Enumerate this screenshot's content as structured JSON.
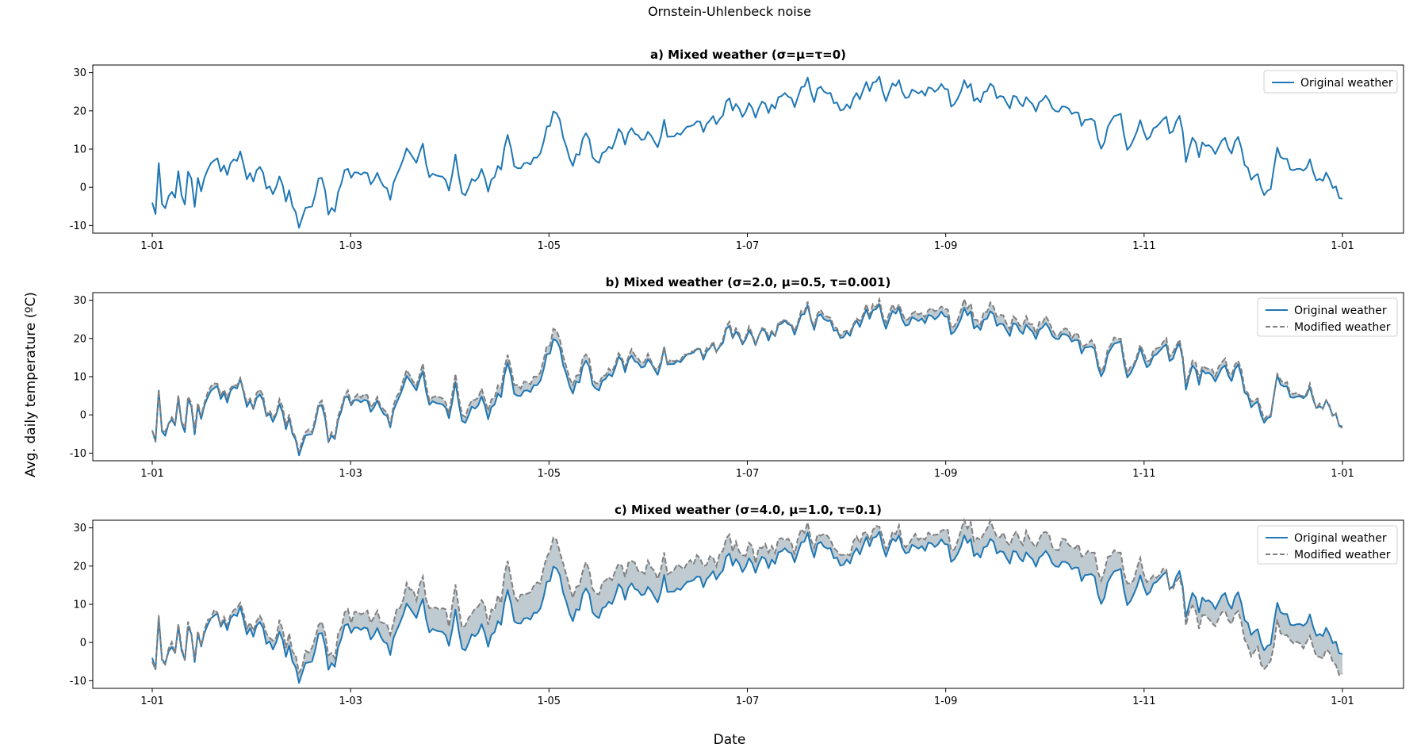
{
  "figure": {
    "suptitle": "Ornstein-Uhlenbeck noise",
    "xlabel": "Date",
    "ylabel": "Avg. daily temperature (ºC)"
  },
  "colors": {
    "original": "#1f77b4",
    "modified": "#808080",
    "fill": "#b8c4cc"
  },
  "chart_data": [
    {
      "type": "line",
      "title": "a) Mixed weather (σ=μ=τ=0)",
      "x_ticks": [
        "1-01",
        "1-03",
        "1-05",
        "1-07",
        "1-09",
        "1-11",
        "1-01"
      ],
      "y_ticks": [
        -10,
        0,
        10,
        20,
        30
      ],
      "ylim": [
        -12,
        32
      ],
      "legend": [
        "Original weather"
      ],
      "legend_position": "top-right",
      "series": [
        {
          "name": "Original weather",
          "style": "solid"
        }
      ]
    },
    {
      "type": "line",
      "title": "b) Mixed weather (σ=2.0, μ=0.5, τ=0.001)",
      "x_ticks": [
        "1-01",
        "1-03",
        "1-05",
        "1-07",
        "1-09",
        "1-11",
        "1-01"
      ],
      "y_ticks": [
        -10,
        0,
        10,
        20,
        30
      ],
      "ylim": [
        -12,
        32
      ],
      "legend": [
        "Original weather",
        "Modified weather"
      ],
      "legend_position": "top-right",
      "series": [
        {
          "name": "Original weather",
          "style": "solid"
        },
        {
          "name": "Modified weather",
          "style": "dashed"
        }
      ]
    },
    {
      "type": "line",
      "title": "c) Mixed weather (σ=4.0, μ=1.0, τ=0.1)",
      "x_ticks": [
        "1-01",
        "1-03",
        "1-05",
        "1-07",
        "1-09",
        "1-11",
        "1-01"
      ],
      "y_ticks": [
        -10,
        0,
        10,
        20,
        30
      ],
      "ylim": [
        -12,
        32
      ],
      "legend": [
        "Original weather",
        "Modified weather"
      ],
      "legend_position": "top-right",
      "series": [
        {
          "name": "Original weather",
          "style": "solid"
        },
        {
          "name": "Modified weather",
          "style": "dashed"
        }
      ]
    }
  ],
  "original_series": {
    "x_start": "1-01",
    "x_end": "1-01",
    "keypoints": [
      [
        "1-01",
        -4
      ],
      [
        "1-02",
        -8
      ],
      [
        "1-03",
        5
      ],
      [
        "1-04",
        -3
      ],
      [
        "1-05",
        -4
      ],
      [
        "1-06",
        -1
      ],
      [
        "1-08",
        -3
      ],
      [
        "1-09",
        3
      ],
      [
        "1-10",
        -3
      ],
      [
        "1-11",
        -4
      ],
      [
        "1-12",
        5
      ],
      [
        "1-13",
        3
      ],
      [
        "1-14",
        -6
      ],
      [
        "1-15",
        1
      ],
      [
        "1-16",
        0
      ],
      [
        "1-18",
        6
      ],
      [
        "1-20",
        8
      ],
      [
        "1-22",
        5
      ],
      [
        "1-24",
        4
      ],
      [
        "1-26",
        6
      ],
      [
        "1-28",
        9
      ],
      [
        "1-30",
        3
      ],
      [
        "2-01",
        2
      ],
      [
        "2-03",
        4
      ],
      [
        "2-05",
        1
      ],
      [
        "2-07",
        -3
      ],
      [
        "2-09",
        4
      ],
      [
        "2-11",
        -4
      ],
      [
        "2-12",
        0
      ],
      [
        "2-14",
        -8
      ],
      [
        "2-15",
        -10
      ],
      [
        "2-17",
        -6
      ],
      [
        "2-19",
        -5
      ],
      [
        "2-21",
        2
      ],
      [
        "2-22",
        3
      ],
      [
        "2-24",
        -6
      ],
      [
        "2-26",
        -5
      ],
      [
        "2-28",
        2
      ],
      [
        "3-01",
        4
      ],
      [
        "3-03",
        3
      ],
      [
        "3-05",
        4
      ],
      [
        "3-07",
        5
      ],
      [
        "3-09",
        2
      ],
      [
        "3-11",
        4
      ],
      [
        "3-13",
        1
      ],
      [
        "3-15",
        -2
      ],
      [
        "3-17",
        3
      ],
      [
        "3-19",
        8
      ],
      [
        "3-21",
        10
      ],
      [
        "3-23",
        6
      ],
      [
        "3-25",
        10
      ],
      [
        "3-27",
        2
      ],
      [
        "3-29",
        4
      ],
      [
        "3-31",
        3
      ],
      [
        "4-02",
        -1
      ],
      [
        "4-04",
        9
      ],
      [
        "4-06",
        -2
      ],
      [
        "4-08",
        0
      ],
      [
        "4-10",
        3
      ],
      [
        "4-12",
        5
      ],
      [
        "4-14",
        -1
      ],
      [
        "4-16",
        4
      ],
      [
        "4-18",
        6
      ],
      [
        "4-20",
        13
      ],
      [
        "4-22",
        5
      ],
      [
        "4-24",
        6
      ],
      [
        "4-26",
        5
      ],
      [
        "4-28",
        8
      ],
      [
        "4-30",
        10
      ],
      [
        "5-02",
        15
      ],
      [
        "5-04",
        20
      ],
      [
        "5-06",
        17
      ],
      [
        "5-08",
        10
      ],
      [
        "5-10",
        7
      ],
      [
        "5-12",
        8
      ],
      [
        "5-14",
        15
      ],
      [
        "5-16",
        8
      ],
      [
        "5-18",
        7
      ],
      [
        "5-20",
        9
      ],
      [
        "5-22",
        10
      ],
      [
        "5-24",
        14
      ],
      [
        "5-26",
        12
      ],
      [
        "5-28",
        15
      ],
      [
        "5-30",
        13
      ],
      [
        "6-01",
        12
      ],
      [
        "6-03",
        15
      ],
      [
        "6-05",
        11
      ],
      [
        "6-07",
        17
      ],
      [
        "6-09",
        12
      ],
      [
        "6-11",
        14
      ],
      [
        "6-13",
        16
      ],
      [
        "6-15",
        17
      ],
      [
        "6-17",
        18
      ],
      [
        "6-19",
        15
      ],
      [
        "6-21",
        18
      ],
      [
        "6-23",
        17
      ],
      [
        "6-25",
        20
      ],
      [
        "6-27",
        22
      ],
      [
        "6-29",
        21
      ],
      [
        "7-01",
        18
      ],
      [
        "7-03",
        22
      ],
      [
        "7-05",
        19
      ],
      [
        "7-07",
        22
      ],
      [
        "7-09",
        20
      ],
      [
        "7-11",
        22
      ],
      [
        "7-13",
        23
      ],
      [
        "7-15",
        24
      ],
      [
        "7-17",
        22
      ],
      [
        "7-19",
        25
      ],
      [
        "7-21",
        28
      ],
      [
        "7-23",
        23
      ],
      [
        "7-25",
        26
      ],
      [
        "7-27",
        24
      ],
      [
        "7-29",
        23
      ],
      [
        "7-31",
        21
      ],
      [
        "8-02",
        21
      ],
      [
        "8-04",
        23
      ],
      [
        "8-06",
        24
      ],
      [
        "8-08",
        27
      ],
      [
        "8-10",
        26
      ],
      [
        "8-12",
        28
      ],
      [
        "8-14",
        24
      ],
      [
        "8-16",
        26
      ],
      [
        "8-18",
        27
      ],
      [
        "8-20",
        24
      ],
      [
        "8-22",
        26
      ],
      [
        "8-24",
        24
      ],
      [
        "8-26",
        25
      ],
      [
        "8-28",
        26
      ],
      [
        "8-30",
        26
      ],
      [
        "9-01",
        27
      ],
      [
        "9-03",
        22
      ],
      [
        "9-05",
        24
      ],
      [
        "9-07",
        27
      ],
      [
        "9-09",
        26
      ],
      [
        "9-11",
        22
      ],
      [
        "9-13",
        24
      ],
      [
        "9-15",
        27
      ],
      [
        "9-17",
        23
      ],
      [
        "9-19",
        24
      ],
      [
        "9-21",
        22
      ],
      [
        "9-23",
        25
      ],
      [
        "9-25",
        22
      ],
      [
        "9-27",
        24
      ],
      [
        "9-29",
        20
      ],
      [
        "10-01",
        23
      ],
      [
        "10-03",
        23
      ],
      [
        "10-05",
        19
      ],
      [
        "10-07",
        22
      ],
      [
        "10-09",
        20
      ],
      [
        "10-11",
        21
      ],
      [
        "10-13",
        16
      ],
      [
        "10-15",
        19
      ],
      [
        "10-17",
        17
      ],
      [
        "10-19",
        11
      ],
      [
        "10-21",
        15
      ],
      [
        "10-23",
        18
      ],
      [
        "10-25",
        19
      ],
      [
        "10-27",
        10
      ],
      [
        "10-29",
        14
      ],
      [
        "10-31",
        17
      ],
      [
        "11-02",
        11
      ],
      [
        "11-04",
        16
      ],
      [
        "11-06",
        16
      ],
      [
        "11-08",
        17
      ],
      [
        "11-10",
        14
      ],
      [
        "11-12",
        19
      ],
      [
        "11-14",
        8
      ],
      [
        "11-16",
        13
      ],
      [
        "11-18",
        9
      ],
      [
        "11-20",
        12
      ],
      [
        "11-22",
        9
      ],
      [
        "11-24",
        11
      ],
      [
        "11-26",
        12
      ],
      [
        "11-28",
        9
      ],
      [
        "11-30",
        13
      ],
      [
        "12-02",
        5
      ],
      [
        "12-04",
        3
      ],
      [
        "12-06",
        3
      ],
      [
        "12-08",
        -1
      ],
      [
        "12-10",
        -1
      ],
      [
        "12-12",
        9
      ],
      [
        "12-14",
        8
      ],
      [
        "12-16",
        6
      ],
      [
        "12-18",
        5
      ],
      [
        "12-20",
        4
      ],
      [
        "12-22",
        7
      ],
      [
        "12-24",
        2
      ],
      [
        "12-26",
        3
      ],
      [
        "12-28",
        2
      ],
      [
        "12-30",
        0
      ],
      [
        "1-01",
        -3
      ]
    ]
  },
  "modified_offsets": {
    "b": [
      [
        0,
        0.5
      ],
      [
        0.2,
        1.2
      ],
      [
        0.32,
        2.5
      ],
      [
        0.45,
        0.4
      ],
      [
        0.6,
        1.0
      ],
      [
        0.7,
        2
      ],
      [
        0.8,
        1
      ],
      [
        0.9,
        1.5
      ],
      [
        1.0,
        0
      ]
    ],
    "c": [
      [
        0,
        0
      ],
      [
        0.15,
        3
      ],
      [
        0.25,
        6
      ],
      [
        0.32,
        7
      ],
      [
        0.42,
        6
      ],
      [
        0.52,
        3
      ],
      [
        0.62,
        2
      ],
      [
        0.7,
        4
      ],
      [
        0.8,
        6
      ],
      [
        0.83,
        4
      ],
      [
        0.88,
        -4
      ],
      [
        0.92,
        -5
      ],
      [
        0.97,
        -5
      ],
      [
        1.0,
        -6
      ]
    ]
  }
}
